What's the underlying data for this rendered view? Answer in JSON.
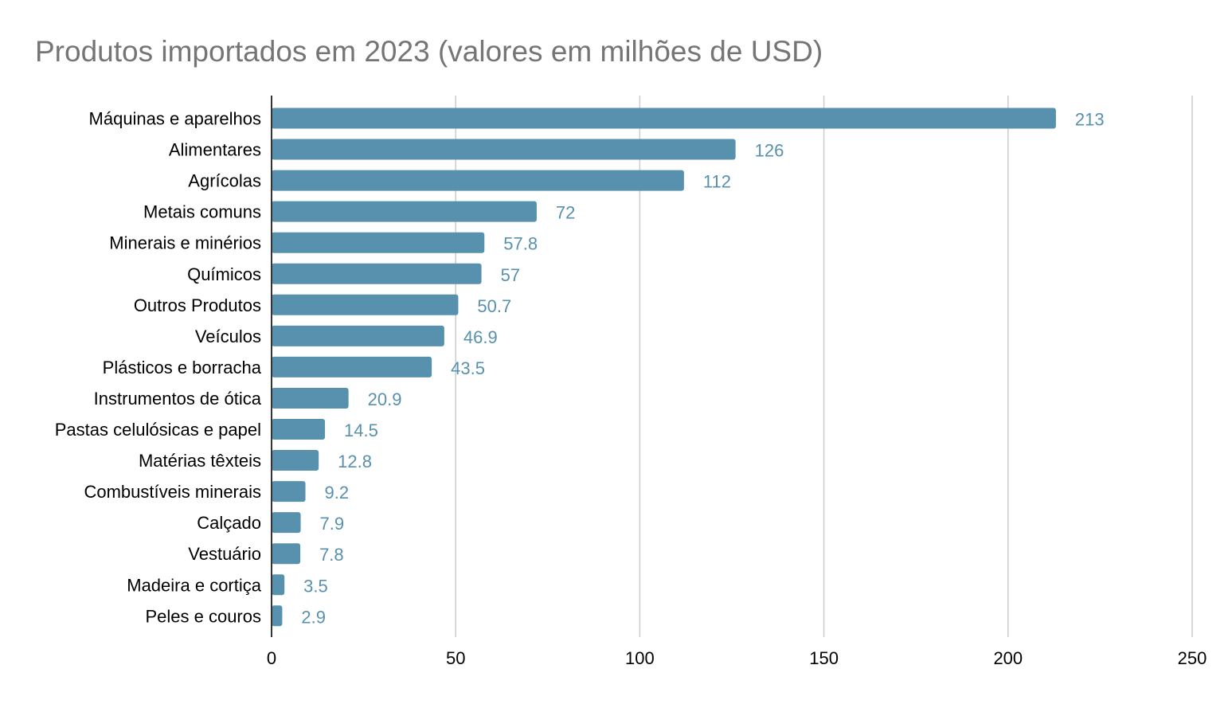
{
  "chart_data": {
    "type": "bar",
    "orientation": "horizontal",
    "title": "Produtos importados em 2023 (valores em milhões de USD)",
    "xlabel": "",
    "ylabel": "",
    "categories": [
      "Máquinas e aparelhos",
      "Alimentares",
      "Agrícolas",
      "Metais comuns",
      "Minerais e minérios",
      "Químicos",
      "Outros Produtos",
      "Veículos",
      "Plásticos e borracha",
      "Instrumentos de ótica",
      "Pastas celulósicas e papel",
      "Matérias têxteis",
      "Combustíveis minerais",
      "Calçado",
      "Vestuário",
      "Madeira e cortiça",
      "Peles e couros"
    ],
    "values": [
      213,
      126,
      112,
      72,
      57.8,
      57,
      50.7,
      46.9,
      43.5,
      20.9,
      14.5,
      12.8,
      9.2,
      7.9,
      7.8,
      3.5,
      2.9
    ],
    "value_labels": [
      "213",
      "126",
      "112",
      "72",
      "57.8",
      "57",
      "50.7",
      "46.9",
      "43.5",
      "20.9",
      "14.5",
      "12.8",
      "9.2",
      "7.9",
      "7.8",
      "3.5",
      "2.9"
    ],
    "xlim": [
      0,
      250
    ],
    "x_ticks": [
      0,
      50,
      100,
      150,
      200,
      250
    ],
    "x_tick_labels": [
      "0",
      "50",
      "100",
      "150",
      "200",
      "250"
    ],
    "grid": true,
    "legend": "none",
    "colors": {
      "bar": "#5891ad",
      "data_label": "#5891ad",
      "grid": "#cccccc",
      "axis": "#333333",
      "title": "#757575"
    }
  }
}
